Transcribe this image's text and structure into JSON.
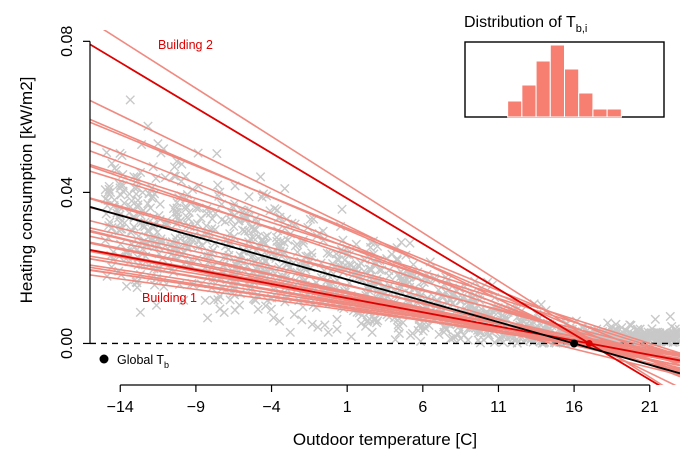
{
  "chart_data": {
    "type": "scatter",
    "xlabel": "Outdoor temperature [C]",
    "ylabel": "Heating consumption [kW/m2]",
    "xlim": [
      -16,
      23
    ],
    "ylim": [
      -0.011,
      0.083
    ],
    "x_ticks": [
      -14,
      -9,
      -4,
      1,
      6,
      11,
      16,
      21
    ],
    "y_ticks": [
      0.0,
      0.04,
      0.08
    ],
    "x_tick_labels": [
      "−14",
      "−9",
      "−4",
      "1",
      "6",
      "11",
      "16",
      "21"
    ],
    "y_tick_labels": [
      "0.00",
      "0.04",
      "0.08"
    ],
    "zero_line": {
      "y": 0,
      "style": "dashed"
    },
    "scatter": {
      "marker": "x",
      "color": "#c8c8c8"
    },
    "colors": {
      "scatter": "#c8c8c8",
      "building": "#f08a80",
      "highlight": "#dd0000",
      "global": "#000000",
      "histogram": "#f77f72"
    },
    "global_fit": {
      "label": "Global T_b",
      "balance_point": 16,
      "slope": -0.00113
    },
    "highlighted_buildings": [
      {
        "label": "Building 2",
        "balance_point": 17,
        "slope": -0.0024
      },
      {
        "label": "Building 1",
        "balance_point": 17,
        "slope": -0.00075
      }
    ],
    "building_lines": [
      {
        "balance_point": 17.5,
        "slope": -0.00255
      },
      {
        "balance_point": 17.0,
        "slope": -0.00195
      },
      {
        "balance_point": 18.5,
        "slope": -0.00172
      },
      {
        "balance_point": 19.5,
        "slope": -0.00165
      },
      {
        "balance_point": 17.5,
        "slope": -0.0016
      },
      {
        "balance_point": 18.0,
        "slope": -0.0015
      },
      {
        "balance_point": 18.0,
        "slope": -0.00138
      },
      {
        "balance_point": 21.0,
        "slope": -0.00128
      },
      {
        "balance_point": 20.5,
        "slope": -0.00125
      },
      {
        "balance_point": 16.5,
        "slope": -0.00118
      },
      {
        "balance_point": 19.0,
        "slope": -0.0011
      },
      {
        "balance_point": 20.0,
        "slope": -0.001
      },
      {
        "balance_point": 16.5,
        "slope": -0.001
      },
      {
        "balance_point": 14.5,
        "slope": -0.00098
      },
      {
        "balance_point": 15.5,
        "slope": -0.00094
      },
      {
        "balance_point": 18.0,
        "slope": -0.0009
      },
      {
        "balance_point": 17.0,
        "slope": -0.00086
      },
      {
        "balance_point": 16.0,
        "slope": -0.00083
      },
      {
        "balance_point": 17.5,
        "slope": -0.0008
      },
      {
        "balance_point": 15.5,
        "slope": -0.00078
      },
      {
        "balance_point": 16.5,
        "slope": -0.00075
      },
      {
        "balance_point": 18.5,
        "slope": -0.00072
      },
      {
        "balance_point": 16.0,
        "slope": -0.0007
      },
      {
        "balance_point": 17.0,
        "slope": -0.00068
      },
      {
        "balance_point": 19.0,
        "slope": -0.00066
      },
      {
        "balance_point": 15.5,
        "slope": -0.00064
      },
      {
        "balance_point": 17.5,
        "slope": -0.00062
      },
      {
        "balance_point": 16.5,
        "slope": -0.0006
      },
      {
        "balance_point": 18.0,
        "slope": -0.00057
      },
      {
        "balance_point": 17.0,
        "slope": -0.00055
      }
    ],
    "inset_histogram": {
      "title": "Distribution of T",
      "title_subscript": "b,i",
      "bins": [
        13.0,
        14.0,
        15.0,
        16.0,
        17.0,
        18.0,
        19.0,
        20.0,
        21.0
      ],
      "counts": [
        2,
        4,
        7,
        9,
        6,
        3,
        1,
        1
      ]
    }
  },
  "annotations": {
    "building_2": "Building 2",
    "building_1": "Building 1",
    "global_legend": "Global T",
    "global_legend_sub": "b"
  }
}
